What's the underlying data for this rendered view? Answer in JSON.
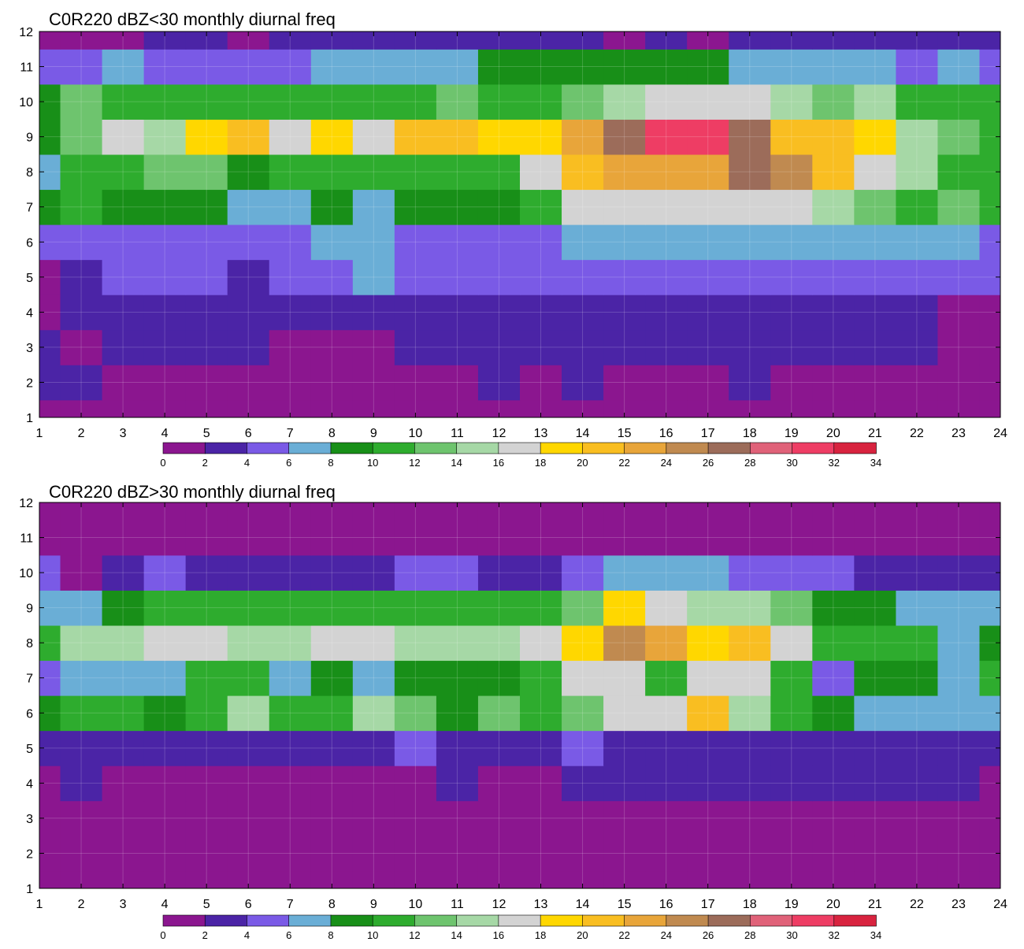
{
  "palette": [
    "#8b168f",
    "#4b24a6",
    "#7a5ae6",
    "#6aaed6",
    "#188f18",
    "#2eac2e",
    "#6ec46e",
    "#a6d8a6",
    "#d3d3d3",
    "#ffd700",
    "#f9be21",
    "#e8a53a",
    "#c08a50",
    "#9c6c5a",
    "#e06279",
    "#ee3d64",
    "#d8233f"
  ],
  "contour_line_color": "#e8b44a",
  "chart_data": [
    {
      "type": "heatmap",
      "title": "C0R220 dBZ<30 monthly diurnal freq",
      "xlabel": "",
      "ylabel": "",
      "xlim": [
        1,
        24
      ],
      "ylim": [
        1,
        12
      ],
      "x_ticks": [
        1,
        2,
        3,
        4,
        5,
        6,
        7,
        8,
        9,
        10,
        11,
        12,
        13,
        14,
        15,
        16,
        17,
        18,
        19,
        20,
        21,
        22,
        23,
        24
      ],
      "y_ticks": [
        1,
        2,
        3,
        4,
        5,
        6,
        7,
        8,
        9,
        10,
        11,
        12
      ],
      "grid": true,
      "colorbar": {
        "levels": [
          0,
          2,
          4,
          6,
          8,
          10,
          12,
          14,
          16,
          18,
          20,
          22,
          24,
          26,
          28,
          30,
          32,
          34
        ],
        "placement": "bottom"
      },
      "x": [
        1,
        2,
        3,
        4,
        5,
        6,
        7,
        8,
        9,
        10,
        11,
        12,
        13,
        14,
        15,
        16,
        17,
        18,
        19,
        20,
        21,
        22,
        23,
        24
      ],
      "y": [
        1,
        2,
        3,
        4,
        5,
        6,
        7,
        8,
        9,
        10,
        11,
        12
      ],
      "z": [
        [
          1,
          1,
          0.5,
          0,
          0,
          0,
          0,
          0,
          0,
          0,
          0,
          0,
          0,
          0,
          0,
          0,
          0,
          0,
          0,
          0,
          0,
          0,
          0,
          1
        ],
        [
          2,
          2,
          1,
          0.5,
          0.5,
          1,
          1,
          1,
          1,
          1,
          1,
          2,
          1,
          3,
          1,
          1,
          1,
          2,
          1,
          1,
          1,
          1,
          0.5,
          1
        ],
        [
          2,
          1.5,
          2,
          2,
          2,
          2,
          1,
          1,
          1,
          2,
          2,
          2,
          2,
          2,
          2,
          2,
          2,
          2,
          2,
          2,
          2,
          2,
          0.5,
          1
        ],
        [
          1,
          2,
          3,
          2,
          3,
          2,
          3,
          3,
          3,
          3,
          3,
          3,
          3,
          3,
          3,
          3,
          3,
          3,
          3,
          3,
          3,
          3,
          1,
          1
        ],
        [
          1,
          2,
          5,
          5,
          5,
          3,
          5,
          5,
          7,
          4,
          5,
          5,
          5,
          5,
          5,
          5,
          5,
          5,
          5,
          5,
          5,
          4,
          5,
          5
        ],
        [
          5,
          4,
          5,
          5,
          5,
          5,
          5,
          6,
          7,
          5,
          5,
          5,
          5,
          6,
          7,
          7,
          7,
          7,
          7,
          7,
          7,
          7,
          7,
          5
        ],
        [
          8,
          10,
          8,
          8,
          8,
          6,
          7,
          8,
          7,
          8,
          8,
          8,
          11,
          16,
          16,
          16,
          16,
          16,
          16,
          14,
          12,
          10,
          12,
          10
        ],
        [
          6,
          10,
          10,
          12,
          12,
          9,
          11,
          10,
          10,
          10,
          10,
          11,
          17,
          20,
          22,
          22,
          22,
          27,
          25,
          20,
          16,
          14,
          10,
          10
        ],
        [
          9,
          12,
          17,
          15,
          19,
          20,
          16,
          18,
          17,
          20,
          20,
          19,
          18,
          23,
          26,
          31,
          31,
          27,
          20,
          20,
          18,
          14,
          12,
          10
        ],
        [
          8,
          12,
          10,
          10,
          10,
          11,
          10,
          10,
          10,
          10,
          12,
          10,
          10,
          12,
          15,
          17,
          17,
          16,
          15,
          13,
          14,
          11,
          10,
          10
        ],
        [
          5,
          4,
          6,
          5,
          5,
          5,
          5,
          6,
          6,
          6,
          6,
          8,
          8,
          8,
          8,
          8,
          8,
          6,
          6,
          6,
          6,
          5,
          6,
          5
        ],
        [
          1,
          1,
          1,
          2,
          2,
          1,
          2,
          2,
          2,
          2,
          2,
          2,
          2,
          2,
          1,
          2,
          1,
          2,
          2,
          2,
          2,
          2,
          2,
          2
        ]
      ]
    },
    {
      "type": "heatmap",
      "title": "C0R220 dBZ>30 monthly diurnal freq",
      "xlabel": "",
      "ylabel": "",
      "xlim": [
        1,
        24
      ],
      "ylim": [
        1,
        12
      ],
      "x_ticks": [
        1,
        2,
        3,
        4,
        5,
        6,
        7,
        8,
        9,
        10,
        11,
        12,
        13,
        14,
        15,
        16,
        17,
        18,
        19,
        20,
        21,
        22,
        23,
        24
      ],
      "y_ticks": [
        1,
        2,
        3,
        4,
        5,
        6,
        7,
        8,
        9,
        10,
        11,
        12
      ],
      "grid": true,
      "colorbar": {
        "levels": [
          0,
          2,
          4,
          6,
          8,
          10,
          12,
          14,
          16,
          18,
          20,
          22,
          24,
          26,
          28,
          30,
          32,
          34
        ],
        "placement": "bottom"
      },
      "x": [
        1,
        2,
        3,
        4,
        5,
        6,
        7,
        8,
        9,
        10,
        11,
        12,
        13,
        14,
        15,
        16,
        17,
        18,
        19,
        20,
        21,
        22,
        23,
        24
      ],
      "y": [
        1,
        2,
        3,
        4,
        5,
        6,
        7,
        8,
        9,
        10,
        11,
        12
      ],
      "z": [
        [
          0,
          0,
          0,
          0,
          0,
          0,
          0,
          0,
          0,
          0,
          0,
          0,
          0,
          0,
          0,
          0,
          0,
          0,
          0,
          0,
          0,
          0,
          0,
          0
        ],
        [
          0,
          0,
          0,
          0,
          0,
          0,
          0,
          0,
          0,
          0,
          0,
          0,
          0,
          0,
          0,
          0,
          0,
          0,
          0,
          0,
          0,
          0,
          0,
          0
        ],
        [
          0,
          0,
          0,
          0,
          0,
          0,
          0,
          0,
          0,
          0,
          0,
          0,
          0,
          0,
          0,
          0,
          1,
          1,
          1,
          1,
          1,
          1,
          1,
          0
        ],
        [
          1,
          3,
          1,
          1,
          1,
          1,
          1,
          1,
          1,
          1,
          2,
          1,
          1,
          2,
          3,
          3,
          3,
          3,
          3,
          3,
          3,
          3,
          3,
          1
        ],
        [
          2,
          3,
          3,
          3,
          3,
          3,
          3,
          3,
          3,
          4,
          3,
          3,
          3,
          5,
          3,
          3,
          3,
          3,
          3,
          3,
          3,
          3,
          3,
          3
        ],
        [
          9,
          10,
          10,
          9,
          10,
          14,
          10,
          10,
          14,
          12,
          9,
          12,
          10,
          13,
          17,
          16,
          21,
          14,
          10,
          9,
          6,
          6,
          7,
          6
        ],
        [
          5,
          6,
          7,
          7,
          11,
          10,
          7,
          8,
          7,
          8,
          8,
          9,
          10,
          16,
          17,
          11,
          16,
          16,
          10,
          5,
          8,
          8,
          7,
          10
        ],
        [
          11,
          14,
          15,
          16,
          17,
          14,
          14,
          17,
          16,
          14,
          14,
          15,
          17,
          18,
          25,
          22,
          18,
          20,
          16,
          10,
          10,
          10,
          7,
          9
        ],
        [
          7,
          7,
          9,
          11,
          10,
          10,
          11,
          11,
          10,
          10,
          11,
          11,
          11,
          12,
          18,
          16,
          14,
          14,
          12,
          8,
          9,
          7,
          7,
          7
        ],
        [
          4,
          1,
          3,
          4,
          3,
          3,
          2,
          3,
          2,
          4,
          5,
          3,
          3,
          5,
          6,
          6,
          6,
          4,
          4,
          4,
          3,
          3,
          3,
          3
        ],
        [
          1,
          1,
          1,
          1,
          1,
          0,
          1,
          1,
          1,
          1,
          1,
          1,
          1,
          1,
          1,
          1,
          1,
          1,
          1,
          1,
          1,
          0,
          0,
          0
        ],
        [
          0,
          0,
          0,
          0,
          0,
          0,
          0,
          0,
          0,
          0,
          0,
          0,
          0,
          0,
          0,
          0,
          0,
          0,
          0,
          0,
          0,
          0,
          0,
          0
        ]
      ]
    }
  ]
}
